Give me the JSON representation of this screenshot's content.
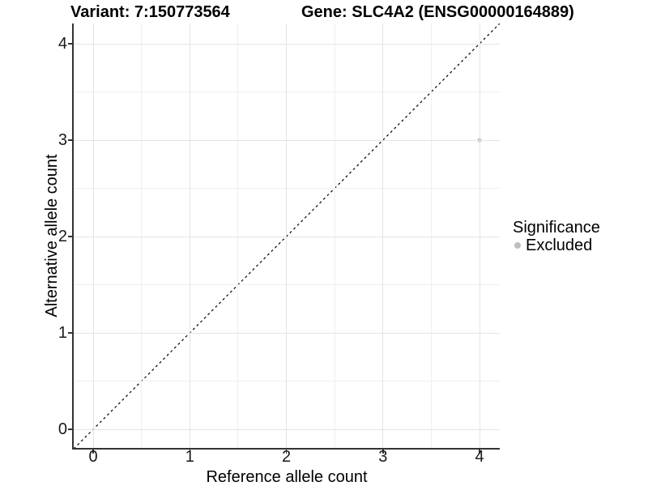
{
  "titles": {
    "variant": "Variant: 7:150773564",
    "gene": "Gene: SLC4A2 (ENSG00000164889)"
  },
  "axes": {
    "x_label": "Reference allele count",
    "y_label": "Alternative allele count"
  },
  "legend": {
    "title": "Significance",
    "items": [
      {
        "label": "Excluded",
        "color": "#BEBEBE"
      }
    ]
  },
  "chart_data": {
    "type": "scatter",
    "title": "Variant: 7:150773564 | Gene: SLC4A2 (ENSG00000164889)",
    "xlabel": "Reference allele count",
    "ylabel": "Alternative allele count",
    "xlim": [
      -0.2,
      4.2
    ],
    "ylim": [
      -0.2,
      4.2
    ],
    "x_ticks": [
      0,
      1,
      2,
      3,
      4
    ],
    "y_ticks": [
      0,
      1,
      2,
      3,
      4
    ],
    "minor_gridlines": [
      0.5,
      1.5,
      2.5,
      3.5
    ],
    "grid": "on",
    "legend_position": "right",
    "series": [
      {
        "name": "Excluded",
        "color": "#BEBEBE",
        "points": [
          {
            "x": 4,
            "y": 3
          }
        ]
      }
    ],
    "reference_line": {
      "type": "identity y=x",
      "style": "dashed",
      "color": "#000000"
    }
  },
  "colors": {
    "background": "#FFFFFF",
    "grid_major": "#E4E4E4",
    "grid_minor": "#EFEFEF",
    "axis_line": "#333333",
    "tick_text": "#1A1A1A",
    "point": "#BEBEBE"
  }
}
